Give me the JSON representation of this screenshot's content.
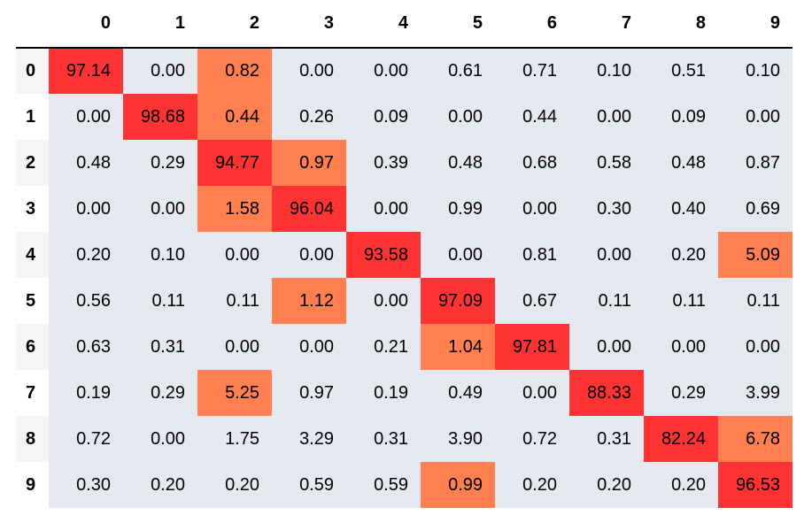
{
  "chart_data": {
    "type": "heatmap",
    "title": "",
    "columns": [
      "0",
      "1",
      "2",
      "3",
      "4",
      "5",
      "6",
      "7",
      "8",
      "9"
    ],
    "rows": [
      "0",
      "1",
      "2",
      "3",
      "4",
      "5",
      "6",
      "7",
      "8",
      "9"
    ],
    "values": [
      [
        "97.14",
        "0.00",
        "0.82",
        "0.00",
        "0.00",
        "0.61",
        "0.71",
        "0.10",
        "0.51",
        "0.10"
      ],
      [
        "0.00",
        "98.68",
        "0.44",
        "0.26",
        "0.09",
        "0.00",
        "0.44",
        "0.00",
        "0.09",
        "0.00"
      ],
      [
        "0.48",
        "0.29",
        "94.77",
        "0.97",
        "0.39",
        "0.48",
        "0.68",
        "0.58",
        "0.48",
        "0.87"
      ],
      [
        "0.00",
        "0.00",
        "1.58",
        "96.04",
        "0.00",
        "0.99",
        "0.00",
        "0.30",
        "0.40",
        "0.69"
      ],
      [
        "0.20",
        "0.10",
        "0.00",
        "0.00",
        "93.58",
        "0.00",
        "0.81",
        "0.00",
        "0.20",
        "5.09"
      ],
      [
        "0.56",
        "0.11",
        "0.11",
        "1.12",
        "0.00",
        "97.09",
        "0.67",
        "0.11",
        "0.11",
        "0.11"
      ],
      [
        "0.63",
        "0.31",
        "0.00",
        "0.00",
        "0.21",
        "1.04",
        "97.81",
        "0.00",
        "0.00",
        "0.00"
      ],
      [
        "0.19",
        "0.29",
        "5.25",
        "0.97",
        "0.19",
        "0.49",
        "0.00",
        "88.33",
        "0.29",
        "3.99"
      ],
      [
        "0.72",
        "0.00",
        "1.75",
        "3.29",
        "0.31",
        "3.90",
        "0.72",
        "0.31",
        "82.24",
        "6.78"
      ],
      [
        "0.30",
        "0.20",
        "0.20",
        "0.59",
        "0.59",
        "0.99",
        "0.20",
        "0.20",
        "0.20",
        "96.53"
      ]
    ],
    "highlight": {
      "row_max_color": "#ff3333",
      "row_second_color": "#ff7f50",
      "default_color": "#e5e8ee"
    }
  }
}
